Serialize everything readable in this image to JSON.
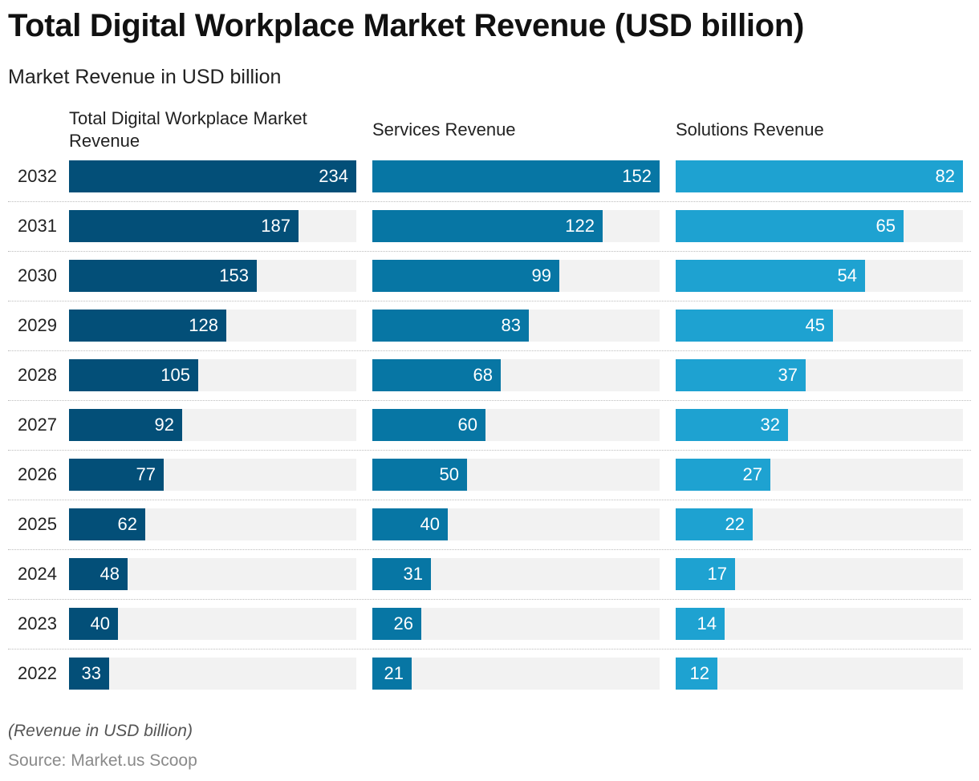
{
  "title": "Total Digital Workplace Market Revenue (USD billion)",
  "subtitle": "Market Revenue in USD billion",
  "footnote": "(Revenue in USD billion)",
  "source": "Source: Market.us Scoop",
  "colors": {
    "series_1": "#034f78",
    "series_2": "#0776a4",
    "series_3": "#1ea2d1",
    "track": "#f2f2f2"
  },
  "chart_data": {
    "type": "bar",
    "orientation": "horizontal",
    "layout": "small-multiples",
    "title": "Total Digital Workplace Market Revenue (USD billion)",
    "subtitle": "Market Revenue in USD billion",
    "categories": [
      "2032",
      "2031",
      "2030",
      "2029",
      "2028",
      "2027",
      "2026",
      "2025",
      "2024",
      "2023",
      "2022"
    ],
    "series": [
      {
        "name": "Total Digital Workplace Market Revenue",
        "values": [
          234,
          187,
          153,
          128,
          105,
          92,
          77,
          62,
          48,
          40,
          33
        ],
        "xlim": [
          0,
          234
        ]
      },
      {
        "name": "Services Revenue",
        "values": [
          152,
          122,
          99,
          83,
          68,
          60,
          50,
          40,
          31,
          26,
          21
        ],
        "xlim": [
          0,
          152
        ]
      },
      {
        "name": "Solutions Revenue",
        "values": [
          82,
          65,
          54,
          45,
          37,
          32,
          27,
          22,
          17,
          14,
          12
        ],
        "xlim": [
          0,
          82
        ]
      }
    ],
    "data_labels": true,
    "grid": false,
    "legend": "none"
  }
}
